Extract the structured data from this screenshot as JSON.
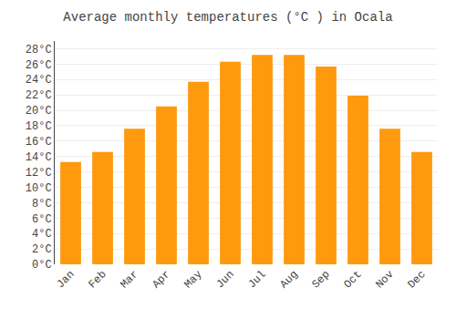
{
  "chart_data": {
    "type": "bar",
    "title": "Average monthly temperatures (°C ) in Ocala",
    "categories": [
      "Jan",
      "Feb",
      "Mar",
      "Apr",
      "May",
      "Jun",
      "Jul",
      "Aug",
      "Sep",
      "Oct",
      "Nov",
      "Dec"
    ],
    "values": [
      13.3,
      14.6,
      17.6,
      20.5,
      23.7,
      26.3,
      27.2,
      27.2,
      25.7,
      21.9,
      17.6,
      14.6
    ],
    "color": "#ff990d",
    "ylim": [
      0,
      29
    ],
    "yticks": [
      {
        "value": 0,
        "label": "0°C"
      },
      {
        "value": 2,
        "label": "2°C"
      },
      {
        "value": 4,
        "label": "4°C"
      },
      {
        "value": 6,
        "label": "6°C"
      },
      {
        "value": 8,
        "label": "8°C"
      },
      {
        "value": 10,
        "label": "10°C"
      },
      {
        "value": 12,
        "label": "12°C"
      },
      {
        "value": 14,
        "label": "14°C"
      },
      {
        "value": 16,
        "label": "16°C"
      },
      {
        "value": 18,
        "label": "18°C"
      },
      {
        "value": 20,
        "label": "20°C"
      },
      {
        "value": 22,
        "label": "22°C"
      },
      {
        "value": 24,
        "label": "24°C"
      },
      {
        "value": 26,
        "label": "26°C"
      },
      {
        "value": 28,
        "label": "28°C"
      }
    ],
    "grid": true
  }
}
